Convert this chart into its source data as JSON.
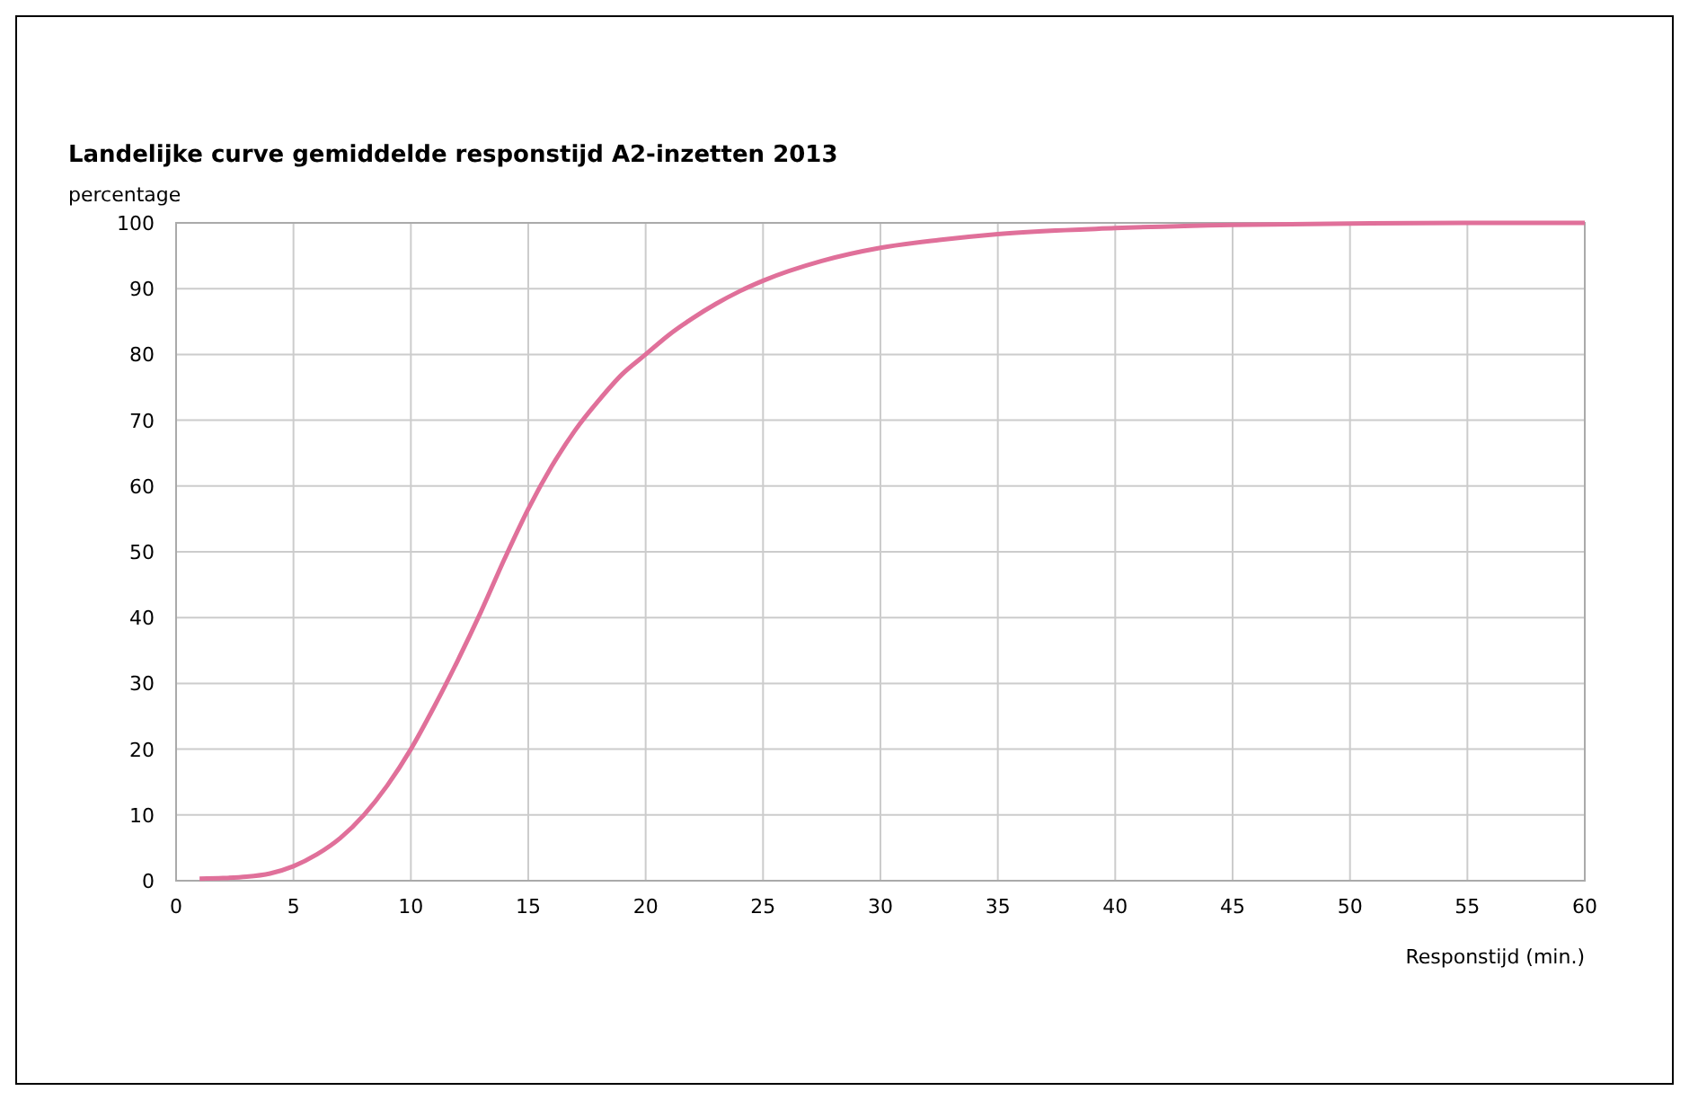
{
  "chart_data": {
    "type": "line",
    "title": "Landelijke curve gemiddelde responstijd A2-inzetten 2013",
    "xlabel": "Responstijd (min.)",
    "ylabel": "percentage",
    "xlim": [
      0,
      60
    ],
    "xticks": [
      0,
      5,
      10,
      15,
      20,
      25,
      30,
      35,
      40,
      45,
      50,
      55,
      60
    ],
    "ylim": [
      0,
      100
    ],
    "yticks": [
      0,
      10,
      20,
      30,
      40,
      50,
      60,
      70,
      80,
      90,
      100
    ],
    "grid": true,
    "series": [
      {
        "color": "#e0709a",
        "x": [
          1,
          2,
          3,
          4,
          5,
          6,
          7,
          8,
          9,
          10,
          11,
          12,
          13,
          14,
          15,
          16,
          17,
          18,
          19,
          20,
          21,
          22,
          23,
          24,
          25,
          27.5,
          30,
          32.5,
          35,
          40,
          45,
          50,
          55,
          60
        ],
        "values": [
          0.3,
          0.4,
          0.6,
          1.1,
          2.2,
          4,
          6.5,
          10,
          14.5,
          20,
          26.5,
          33.5,
          41,
          49,
          56.5,
          63,
          68.5,
          73,
          77,
          80,
          83,
          85.5,
          87.7,
          89.6,
          91.2,
          94.2,
          96.2,
          97.4,
          98.3,
          99.2,
          99.7,
          99.9,
          100,
          100
        ]
      }
    ]
  }
}
